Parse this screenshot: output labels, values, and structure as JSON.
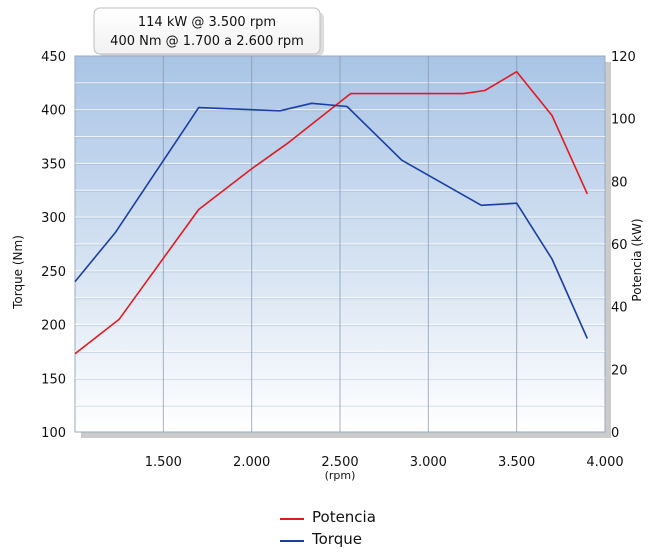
{
  "header_box": {
    "line1": "114 kW @ 3.500 rpm",
    "line2": "400 Nm @ 1.700 a 2.600 rpm"
  },
  "chart_data": {
    "type": "line",
    "title": "",
    "xlabel": "(rpm)",
    "ylabel_left": "Torque (Nm)",
    "ylabel_right": "Potencia (kW)",
    "xlim": [
      1000,
      4000
    ],
    "ylim_left": [
      100,
      450
    ],
    "ylim_right": [
      0,
      120
    ],
    "x_tick_labels": [
      "1.500",
      "2.000",
      "2.500",
      "3.000",
      "3.500",
      "4.000"
    ],
    "x_tick_values": [
      1500,
      2000,
      2500,
      3000,
      3500,
      4000
    ],
    "y_left_tick_labels": [
      "100",
      "150",
      "200",
      "250",
      "300",
      "350",
      "400",
      "450"
    ],
    "y_right_tick_labels": [
      "0",
      "20",
      "40",
      "60",
      "80",
      "100",
      "120"
    ],
    "grid": true,
    "legend_placement": "bottom-center",
    "series": [
      {
        "name": "Potencia",
        "axis": "right",
        "color": "#e01a22",
        "x": [
          1000,
          1250,
          1700,
          2000,
          2200,
          2560,
          3000,
          3200,
          3320,
          3500,
          3700,
          3900
        ],
        "y": [
          25,
          36,
          71,
          84,
          92,
          108,
          108,
          108,
          109,
          115,
          101,
          76
        ]
      },
      {
        "name": "Torque",
        "axis": "left",
        "color": "#1a3fa0",
        "x": [
          1000,
          1230,
          1700,
          2160,
          2340,
          2540,
          2850,
          3300,
          3500,
          3700,
          3900
        ],
        "y": [
          240,
          286,
          402,
          399,
          406,
          403,
          353,
          311,
          313,
          261,
          187
        ]
      }
    ]
  }
}
